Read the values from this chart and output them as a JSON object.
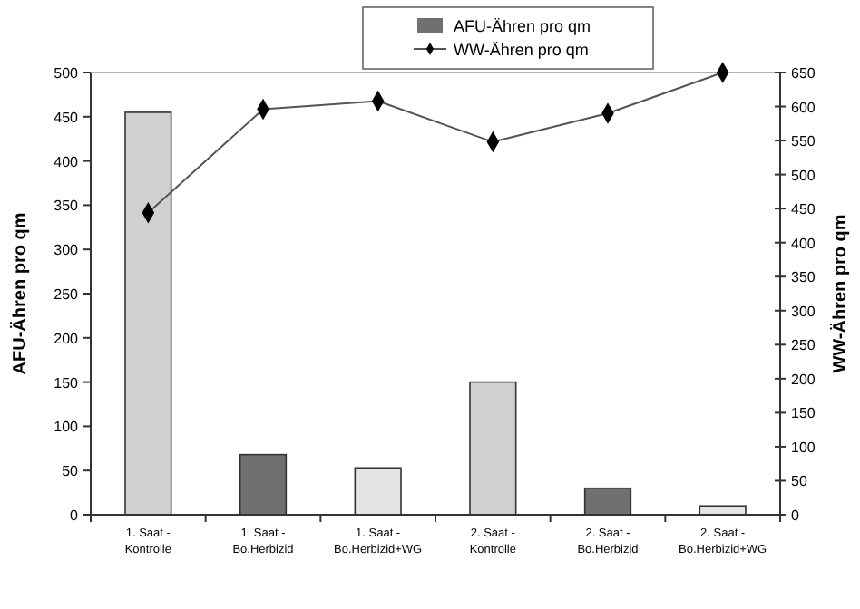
{
  "chart_data": {
    "type": "bar",
    "categories": [
      "1. Saat - Kontrolle",
      "1. Saat - Bo.Herbizid",
      "1. Saat - Bo.Herbizid+WG",
      "2. Saat - Kontrolle",
      "2. Saat - Bo.Herbizid",
      "2. Saat - Bo.Herbizid+WG"
    ],
    "series": [
      {
        "name": "AFU-Ähren pro qm",
        "color": "#707070",
        "colors": [
          "#d0d0d0",
          "#707070",
          "#e4e4e4",
          "#d0d0d0",
          "#707070",
          "#e4e4e4"
        ],
        "values": [
          455,
          68,
          53,
          150,
          30,
          10
        ]
      },
      {
        "name": "WW-Ähren pro qm",
        "type": "line",
        "axis": "y2",
        "color": "#555555",
        "marker": "diamond",
        "values": [
          444,
          596,
          608,
          548,
          590,
          650
        ]
      }
    ],
    "ylabel": "AFU-Ähren pro qm",
    "y2label": "WW-Ähren pro qm",
    "ylim": [
      0,
      500
    ],
    "yticks": [
      0,
      50,
      100,
      150,
      200,
      250,
      300,
      350,
      400,
      450,
      500
    ],
    "y2lim": [
      0,
      650
    ],
    "y2ticks": [
      0,
      50,
      100,
      150,
      200,
      250,
      300,
      350,
      400,
      450,
      500,
      550,
      600,
      650
    ],
    "legend": "top"
  }
}
